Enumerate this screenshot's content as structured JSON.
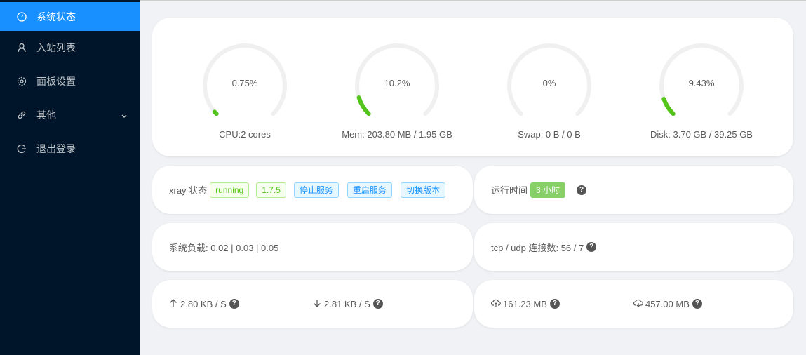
{
  "sidebar": {
    "items": [
      {
        "label": "系统状态",
        "icon": "dashboard-icon",
        "active": true
      },
      {
        "label": "入站列表",
        "icon": "user-icon"
      },
      {
        "label": "面板设置",
        "icon": "gear-icon"
      },
      {
        "label": "其他",
        "icon": "link-icon",
        "has_submenu": true
      },
      {
        "label": "退出登录",
        "icon": "logout-icon"
      }
    ]
  },
  "gauges": [
    {
      "percent_text": "0.75%",
      "percent": 0.75,
      "label": "CPU:2 cores"
    },
    {
      "percent_text": "10.2%",
      "percent": 10.2,
      "label": "Mem: 203.80 MB / 1.95 GB"
    },
    {
      "percent_text": "0%",
      "percent": 0,
      "label": "Swap: 0 B / 0 B"
    },
    {
      "percent_text": "9.43%",
      "percent": 9.43,
      "label": "Disk: 3.70 GB / 39.25 GB"
    }
  ],
  "colors": {
    "gauge_fill": "#52c41a",
    "gauge_track": "#f0f0f0",
    "accent": "#1890ff",
    "sidebar": "#001529"
  },
  "xray": {
    "label": "xray 状态",
    "status": "running",
    "version": "1.7.5",
    "stop": "停止服务",
    "restart": "重启服务",
    "switch": "切换版本"
  },
  "uptime": {
    "label": "运行时间",
    "value": "3 小时"
  },
  "load": {
    "text": "系统负载: 0.02 | 0.03 | 0.05"
  },
  "conn": {
    "text": "tcp / udp 连接数: 56 / 7"
  },
  "speed": {
    "up": "2.80 KB / S",
    "down": "2.81 KB / S"
  },
  "traffic": {
    "sent": "161.23 MB",
    "received": "457.00 MB"
  }
}
